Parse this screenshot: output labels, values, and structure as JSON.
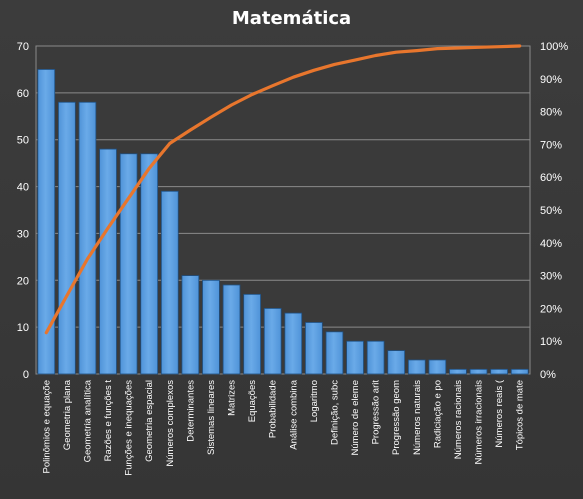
{
  "chart_data": {
    "type": "bar",
    "title": "Matemática",
    "xlabel": "",
    "ylabel": "",
    "ylim": [
      0,
      70
    ],
    "y_ticks": [
      "0",
      "10",
      "20",
      "30",
      "40",
      "50",
      "60",
      "70"
    ],
    "y2lim": [
      0,
      100
    ],
    "y2_ticks": [
      "0%",
      "10%",
      "20%",
      "30%",
      "40%",
      "50%",
      "60%",
      "70%",
      "80%",
      "90%",
      "100%"
    ],
    "grid": true,
    "legend": "none",
    "categories": [
      "Polinômios e equaçõe",
      "Geometria plana",
      "Geometria analítica",
      "Razões e funções t",
      "Funções e inequações",
      "Geometria espacial",
      "Números complexos",
      "Determinantes",
      "Sistemas lineares",
      "Matrizes",
      "Equações",
      "Probabilidade",
      "Análise combina",
      "Logaritmo",
      "Definição, subc",
      "Número de eleme",
      "Progressão arit",
      "Progressão geom",
      "Números naturais",
      "Radiciação e po",
      "Números racionais",
      "Números irracionais",
      "Números reais (",
      "Tópicos de mate"
    ],
    "series": [
      {
        "type": "bar",
        "axis": "left",
        "values": [
          65,
          58,
          58,
          48,
          47,
          47,
          39,
          21,
          20,
          19,
          17,
          14,
          13,
          11,
          9,
          7,
          7,
          5,
          3,
          3,
          1,
          1,
          1,
          1
        ]
      },
      {
        "type": "line",
        "axis": "right",
        "unit": "%",
        "values": [
          12.6,
          23.9,
          35.1,
          44.5,
          53.6,
          62.7,
          70.3,
          74.4,
          78.3,
          82.0,
          85.2,
          87.9,
          90.5,
          92.6,
          94.4,
          95.7,
          97.1,
          98.1,
          98.6,
          99.2,
          99.4,
          99.6,
          99.8,
          100.0
        ]
      }
    ],
    "colors": {
      "background": "#3a3a3a",
      "plot_area": "#3a3a3a",
      "bar_fill": "#4f93d8",
      "bar_highlight": "#6aaae8",
      "bar_stroke": "#1f4f80",
      "line": "#e8762d",
      "grid": "#8a8a8a",
      "text": "#ffffff"
    }
  }
}
